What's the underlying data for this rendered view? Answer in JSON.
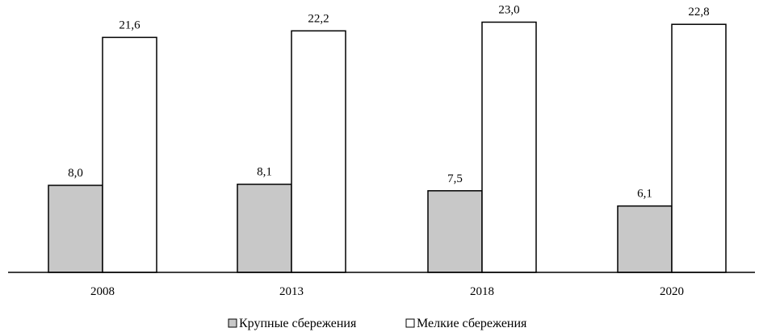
{
  "chart_data": {
    "type": "bar",
    "categories": [
      "2008",
      "2013",
      "2018",
      "2020"
    ],
    "series": [
      {
        "name": "Крупные сбережения",
        "values": [
          8.0,
          8.1,
          7.5,
          6.1
        ],
        "labels": [
          "8,0",
          "8,1",
          "7,5",
          "6,1"
        ],
        "color": "#c8c8c8"
      },
      {
        "name": "Мелкие сбережения",
        "values": [
          21.6,
          22.2,
          23.0,
          22.8
        ],
        "labels": [
          "21,6",
          "22,2",
          "23,0",
          "22,8"
        ],
        "color": "#ffffff"
      }
    ],
    "ylim": [
      0,
      25
    ],
    "grid": false,
    "legend_position": "bottom"
  }
}
